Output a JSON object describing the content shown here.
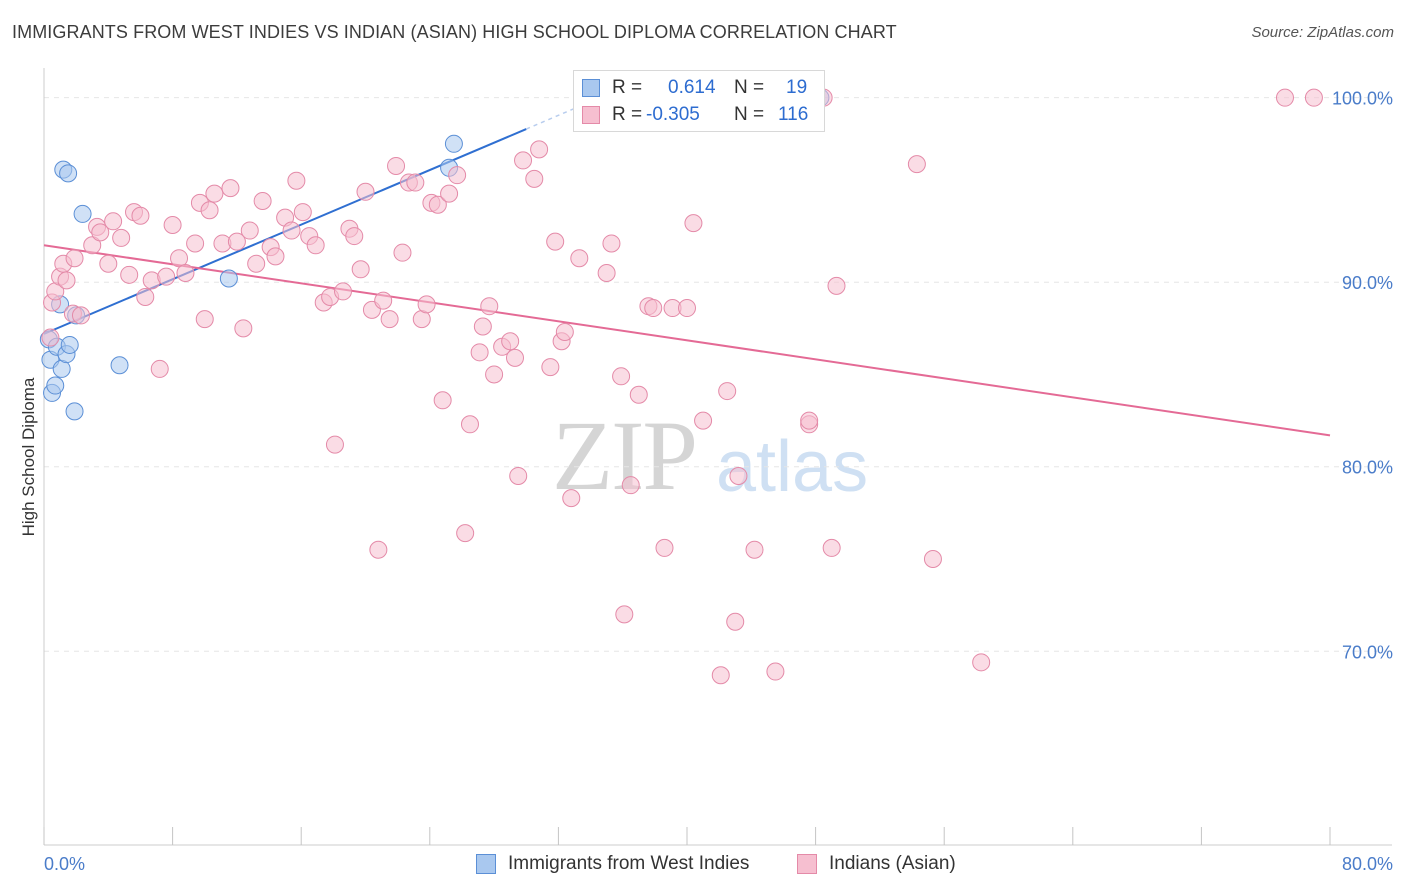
{
  "title": "IMMIGRANTS FROM WEST INDIES VS INDIAN (ASIAN) HIGH SCHOOL DIPLOMA CORRELATION CHART",
  "source": "Source: ZipAtlas.com",
  "watermark": {
    "zip": "ZIP",
    "atlas": "atlas"
  },
  "legend_top": {
    "rows": [
      {
        "r_label": "R =",
        "r_value": "0.614",
        "n_label": "N =",
        "n_value": "19",
        "color": "#a9c8ef",
        "border": "#5b8fd6"
      },
      {
        "r_label": "R =",
        "r_value": "-0.305",
        "n_label": "N =",
        "n_value": "116",
        "color": "#f6bfd0",
        "border": "#e48aa8"
      }
    ]
  },
  "legend_bottom": [
    {
      "label": "Immigrants from West Indies",
      "color": "#a9c8ef",
      "border": "#5b8fd6"
    },
    {
      "label": "Indians (Asian)",
      "color": "#f6bfd0",
      "border": "#e48aa8"
    }
  ],
  "chart_data": {
    "type": "scatter",
    "title": "IMMIGRANTS FROM WEST INDIES VS INDIAN (ASIAN) HIGH SCHOOL DIPLOMA CORRELATION CHART",
    "xlabel": "",
    "ylabel": "High School Diploma",
    "xlim": [
      0,
      80
    ],
    "ylim": [
      59.5,
      101.5
    ],
    "x_tick_labels": [
      "0.0%",
      "80.0%"
    ],
    "y_ticks": [
      70,
      80,
      90,
      100
    ],
    "y_tick_labels": [
      "70.0%",
      "80.0%",
      "90.0%",
      "100.0%"
    ],
    "grid": true,
    "legend_position": "top-center",
    "series": [
      {
        "name": "Immigrants from West Indies",
        "color": "#a9c8ef",
        "stroke": "#5b8fd6",
        "trend": {
          "x": [
            0,
            30
          ],
          "y": [
            87.2,
            98.3
          ],
          "dashed_extension_to": [
            33.5,
            99.6
          ],
          "color": "#2f6fd1"
        },
        "points": [
          [
            0.3,
            86.9
          ],
          [
            0.4,
            85.8
          ],
          [
            0.5,
            84.0
          ],
          [
            0.7,
            84.4
          ],
          [
            0.8,
            86.5
          ],
          [
            1.0,
            88.8
          ],
          [
            1.1,
            85.3
          ],
          [
            1.2,
            96.1
          ],
          [
            1.5,
            95.9
          ],
          [
            1.4,
            86.1
          ],
          [
            1.6,
            86.6
          ],
          [
            1.9,
            83.0
          ],
          [
            2.0,
            88.2
          ],
          [
            2.4,
            93.7
          ],
          [
            4.7,
            85.5
          ],
          [
            11.5,
            90.2
          ],
          [
            25.2,
            96.2
          ],
          [
            25.5,
            97.5
          ],
          [
            48.3,
            100.0
          ]
        ]
      },
      {
        "name": "Indians (Asian)",
        "color": "#f6bfd0",
        "stroke": "#e48aa8",
        "trend": {
          "x": [
            0,
            80
          ],
          "y": [
            92.0,
            81.7
          ],
          "color": "#e46a95"
        },
        "points": [
          [
            0.4,
            87.0
          ],
          [
            0.5,
            88.9
          ],
          [
            0.7,
            89.5
          ],
          [
            1.0,
            90.3
          ],
          [
            1.2,
            91.0
          ],
          [
            1.4,
            90.1
          ],
          [
            1.8,
            88.3
          ],
          [
            1.9,
            91.3
          ],
          [
            2.3,
            88.2
          ],
          [
            3.0,
            92.0
          ],
          [
            3.3,
            93.0
          ],
          [
            3.5,
            92.7
          ],
          [
            4.0,
            91.0
          ],
          [
            4.3,
            93.3
          ],
          [
            4.8,
            92.4
          ],
          [
            5.3,
            90.4
          ],
          [
            5.6,
            93.8
          ],
          [
            6.0,
            93.6
          ],
          [
            6.3,
            89.2
          ],
          [
            6.7,
            90.1
          ],
          [
            7.2,
            85.3
          ],
          [
            7.6,
            90.3
          ],
          [
            8.0,
            93.1
          ],
          [
            8.4,
            91.3
          ],
          [
            8.8,
            90.5
          ],
          [
            9.4,
            92.1
          ],
          [
            9.7,
            94.3
          ],
          [
            10.0,
            88.0
          ],
          [
            10.3,
            93.9
          ],
          [
            10.6,
            94.8
          ],
          [
            11.1,
            92.1
          ],
          [
            11.6,
            95.1
          ],
          [
            12.0,
            92.2
          ],
          [
            12.4,
            87.5
          ],
          [
            12.8,
            92.8
          ],
          [
            13.2,
            91.0
          ],
          [
            13.6,
            94.4
          ],
          [
            14.1,
            91.9
          ],
          [
            14.4,
            91.4
          ],
          [
            15.0,
            93.5
          ],
          [
            15.4,
            92.8
          ],
          [
            15.7,
            95.5
          ],
          [
            16.1,
            93.8
          ],
          [
            16.5,
            92.5
          ],
          [
            16.9,
            92.0
          ],
          [
            17.4,
            88.9
          ],
          [
            17.8,
            89.2
          ],
          [
            18.1,
            81.2
          ],
          [
            18.6,
            89.5
          ],
          [
            19.0,
            92.9
          ],
          [
            19.3,
            92.5
          ],
          [
            19.7,
            90.7
          ],
          [
            20.0,
            94.9
          ],
          [
            20.4,
            88.5
          ],
          [
            20.8,
            75.5
          ],
          [
            21.1,
            89.0
          ],
          [
            21.5,
            88.0
          ],
          [
            21.9,
            96.3
          ],
          [
            22.3,
            91.6
          ],
          [
            22.7,
            95.4
          ],
          [
            23.1,
            95.4
          ],
          [
            23.5,
            88.0
          ],
          [
            23.8,
            88.8
          ],
          [
            24.1,
            94.3
          ],
          [
            24.5,
            94.2
          ],
          [
            24.8,
            83.6
          ],
          [
            25.2,
            94.8
          ],
          [
            25.7,
            95.8
          ],
          [
            26.2,
            76.4
          ],
          [
            26.5,
            82.3
          ],
          [
            27.1,
            86.2
          ],
          [
            27.3,
            87.6
          ],
          [
            27.7,
            88.7
          ],
          [
            28.0,
            85.0
          ],
          [
            28.5,
            86.5
          ],
          [
            29.0,
            86.8
          ],
          [
            29.3,
            85.9
          ],
          [
            29.5,
            79.5
          ],
          [
            29.8,
            96.6
          ],
          [
            30.5,
            95.6
          ],
          [
            30.8,
            97.2
          ],
          [
            31.5,
            85.4
          ],
          [
            31.8,
            92.2
          ],
          [
            32.2,
            86.8
          ],
          [
            32.4,
            87.3
          ],
          [
            32.8,
            78.3
          ],
          [
            33.3,
            91.3
          ],
          [
            35.0,
            90.5
          ],
          [
            35.3,
            92.1
          ],
          [
            35.9,
            84.9
          ],
          [
            36.1,
            72.0
          ],
          [
            36.5,
            79.0
          ],
          [
            37.0,
            83.9
          ],
          [
            37.6,
            88.7
          ],
          [
            37.9,
            88.6
          ],
          [
            38.6,
            75.6
          ],
          [
            39.1,
            88.6
          ],
          [
            40.0,
            88.6
          ],
          [
            40.4,
            93.2
          ],
          [
            41.0,
            82.5
          ],
          [
            42.1,
            68.7
          ],
          [
            42.5,
            84.1
          ],
          [
            43.0,
            71.6
          ],
          [
            43.2,
            79.5
          ],
          [
            44.2,
            75.5
          ],
          [
            45.5,
            68.9
          ],
          [
            47.6,
            82.3
          ],
          [
            47.6,
            82.5
          ],
          [
            49.0,
            75.6
          ],
          [
            49.3,
            89.8
          ],
          [
            54.3,
            96.4
          ],
          [
            55.3,
            75.0
          ],
          [
            58.3,
            69.4
          ],
          [
            77.2,
            100.0
          ],
          [
            79.0,
            100.0
          ],
          [
            48.5,
            100.0
          ]
        ]
      }
    ]
  }
}
